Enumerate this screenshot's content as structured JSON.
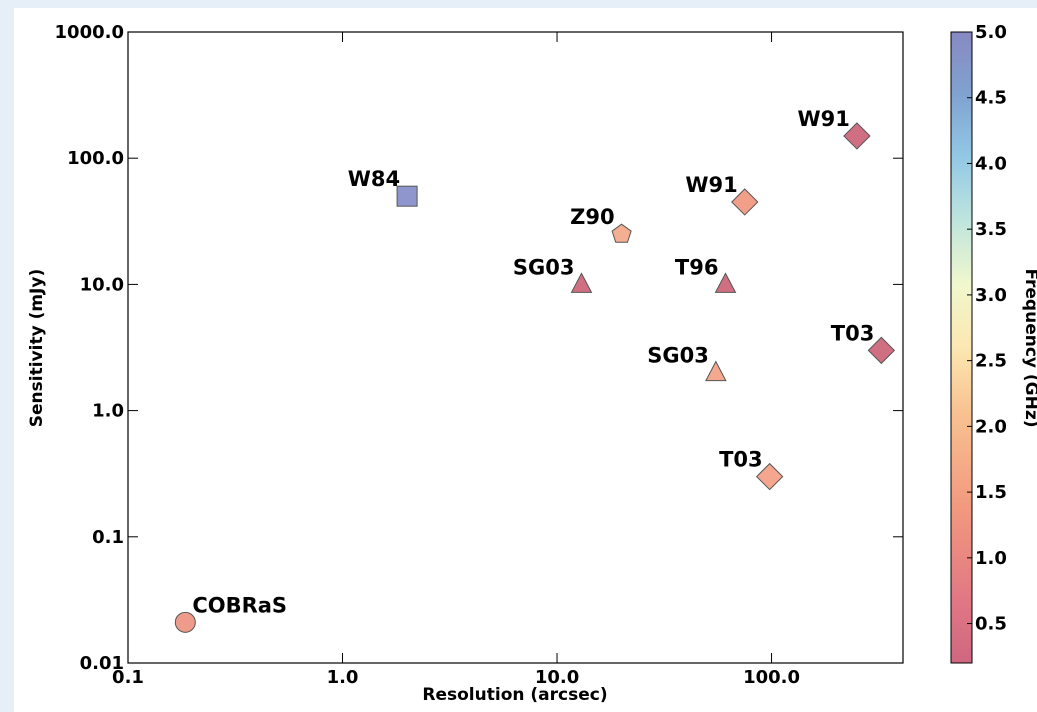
{
  "chart_data": {
    "type": "scatter",
    "x_label": "Resolution (arcsec)",
    "y_label": "Sensitivity (mJy)",
    "colorbar_label": "Frequency (GHz)",
    "x_scale": "log",
    "y_scale": "log",
    "labels": [
      "COBRaS",
      "W84",
      "Z90",
      "SG03",
      "T96",
      "W91",
      "W91",
      "T03",
      "SG03",
      "T03"
    ],
    "x": [
      0.185,
      2.0,
      20,
      13,
      61,
      75,
      250,
      325,
      55,
      98
    ],
    "values": [
      0.021,
      50,
      25,
      10,
      10,
      45,
      150,
      3,
      2,
      0.3
    ],
    "markers": [
      "circle",
      "square",
      "pentagon",
      "triangle",
      "triangle",
      "diamond",
      "diamond",
      "diamond",
      "triangle",
      "diamond"
    ],
    "colors": [
      "#ec8a78",
      "#7b84c4",
      "#f2a07e",
      "#c9566c",
      "#c9566c",
      "#f08e74",
      "#c9566c",
      "#c9566c",
      "#f09a7a",
      "#f2987a"
    ],
    "xlim": [
      0.1,
      410
    ],
    "xticks": [
      0.1,
      {
        "value": 1,
        "label": "1.0"
      },
      {
        "value": 10,
        "label": "10.0"
      },
      {
        "value": 100,
        "label": "100.0"
      }
    ],
    "ylim": [
      0.01,
      1000
    ],
    "yticks": [
      0.01,
      0.1,
      {
        "value": 1,
        "label": "1.0"
      },
      {
        "value": 10,
        "label": "10.0"
      },
      {
        "value": 100,
        "label": "100.0"
      },
      {
        "value": 1000,
        "label": "1000.0"
      }
    ],
    "clim": [
      0.2,
      5.0
    ],
    "cticks": [
      0.5,
      {
        "value": 1,
        "label": "1.0"
      },
      1.5,
      {
        "value": 2,
        "label": "2.0"
      },
      2.5,
      {
        "value": 3,
        "label": "3.0"
      },
      3.5,
      {
        "value": 4,
        "label": "4.0"
      },
      4.5,
      {
        "value": 5,
        "label": "5.0"
      }
    ]
  }
}
